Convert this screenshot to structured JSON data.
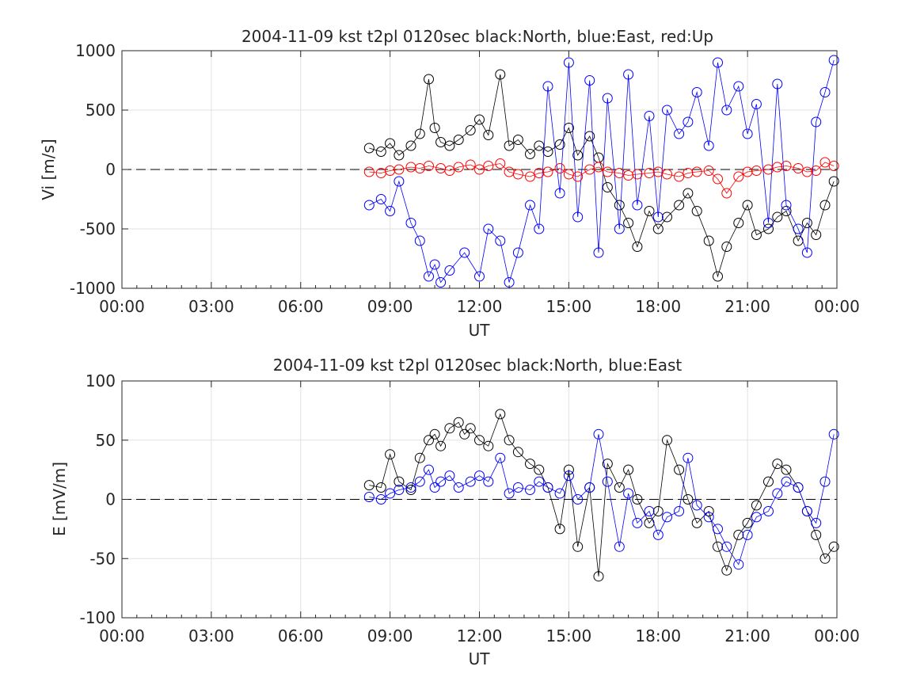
{
  "chart_data": [
    {
      "type": "scatter",
      "title": "2004-11-09 kst t2pl 0120sec black:North, blue:East, red:Up",
      "xlabel": "UT",
      "ylabel": "Vi [m/s]",
      "xlim": [
        0,
        24
      ],
      "ylim": [
        -1000,
        1000
      ],
      "x_ticks": [
        "00:00",
        "03:00",
        "06:00",
        "09:00",
        "12:00",
        "15:00",
        "18:00",
        "21:00",
        "00:00"
      ],
      "y_ticks": [
        "1000",
        "500",
        "0",
        "-500",
        "-1000"
      ],
      "y_tick_values": [
        1000,
        500,
        0,
        -500,
        -1000
      ],
      "grid": true,
      "zero_line": true,
      "series": [
        {
          "color": "#000000",
          "x": [
            8.3,
            8.7,
            9.0,
            9.3,
            9.7,
            10.0,
            10.3,
            10.5,
            10.7,
            11.0,
            11.3,
            11.7,
            12.0,
            12.3,
            12.7,
            13.0,
            13.3,
            13.7,
            14.0,
            14.3,
            14.7,
            15.0,
            15.3,
            15.7,
            16.0,
            16.3,
            16.7,
            17.0,
            17.3,
            17.7,
            18.0,
            18.3,
            18.7,
            19.0,
            19.3,
            19.7,
            20.0,
            20.3,
            20.7,
            21.0,
            21.3,
            21.7,
            22.0,
            22.3,
            22.7,
            23.0,
            23.3,
            23.6,
            23.9
          ],
          "y": [
            180,
            150,
            220,
            120,
            200,
            300,
            760,
            350,
            230,
            200,
            250,
            330,
            420,
            290,
            800,
            200,
            250,
            130,
            200,
            150,
            210,
            350,
            120,
            280,
            100,
            -150,
            -300,
            -450,
            -650,
            -350,
            -500,
            -400,
            -300,
            -200,
            -350,
            -600,
            -900,
            -650,
            -450,
            -300,
            -550,
            -500,
            -400,
            -350,
            -600,
            -450,
            -550,
            -300,
            -100
          ]
        },
        {
          "color": "#0000ff",
          "x": [
            8.3,
            8.7,
            9.0,
            9.3,
            9.7,
            10.0,
            10.3,
            10.5,
            10.7,
            11.0,
            11.5,
            12.0,
            12.3,
            12.7,
            13.0,
            13.3,
            13.7,
            14.0,
            14.3,
            14.7,
            15.0,
            15.3,
            15.7,
            16.0,
            16.3,
            16.7,
            17.0,
            17.3,
            17.7,
            18.0,
            18.3,
            18.7,
            19.0,
            19.3,
            19.7,
            20.0,
            20.3,
            20.7,
            21.0,
            21.3,
            21.7,
            22.0,
            22.3,
            22.7,
            23.0,
            23.3,
            23.6,
            23.9
          ],
          "y": [
            -300,
            -250,
            -350,
            -100,
            -450,
            -600,
            -900,
            -800,
            -950,
            -850,
            -700,
            -900,
            -500,
            -600,
            -950,
            -700,
            -300,
            -500,
            700,
            -200,
            900,
            -400,
            750,
            -700,
            600,
            -500,
            800,
            -300,
            450,
            -400,
            500,
            300,
            400,
            650,
            200,
            900,
            500,
            700,
            300,
            550,
            -450,
            720,
            -300,
            -500,
            -700,
            400,
            650,
            920
          ]
        },
        {
          "color": "#ff0000",
          "x": [
            8.3,
            8.7,
            9.0,
            9.3,
            9.7,
            10.0,
            10.3,
            10.7,
            11.0,
            11.3,
            11.7,
            12.0,
            12.3,
            12.7,
            13.0,
            13.3,
            13.7,
            14.0,
            14.3,
            14.7,
            15.0,
            15.3,
            15.7,
            16.0,
            16.3,
            16.7,
            17.0,
            17.3,
            17.7,
            18.0,
            18.3,
            18.7,
            19.0,
            19.3,
            19.7,
            20.0,
            20.3,
            20.7,
            21.0,
            21.3,
            21.7,
            22.0,
            22.3,
            22.7,
            23.0,
            23.3,
            23.6,
            23.9
          ],
          "y": [
            -20,
            -30,
            -10,
            0,
            20,
            10,
            30,
            10,
            -10,
            20,
            40,
            0,
            30,
            50,
            -20,
            -40,
            -60,
            -30,
            -20,
            10,
            -40,
            -60,
            0,
            20,
            -20,
            -30,
            -50,
            -40,
            -30,
            -20,
            -40,
            -60,
            -30,
            -20,
            -10,
            -80,
            -200,
            -60,
            -20,
            -10,
            0,
            20,
            30,
            10,
            -20,
            -10,
            60,
            30
          ]
        }
      ]
    },
    {
      "type": "scatter",
      "title": "2004-11-09 kst t2pl 0120sec black:North, blue:East",
      "xlabel": "UT",
      "ylabel": "E [mV/m]",
      "xlim": [
        0,
        24
      ],
      "ylim": [
        -100,
        100
      ],
      "x_ticks": [
        "00:00",
        "03:00",
        "06:00",
        "09:00",
        "12:00",
        "15:00",
        "18:00",
        "21:00",
        "00:00"
      ],
      "y_ticks": [
        "100",
        "50",
        "0",
        "-50",
        "-100"
      ],
      "y_tick_values": [
        100,
        50,
        0,
        -50,
        -100
      ],
      "grid": true,
      "zero_line": true,
      "series": [
        {
          "color": "#000000",
          "x": [
            8.3,
            8.7,
            9.0,
            9.3,
            9.7,
            10.0,
            10.3,
            10.5,
            10.7,
            11.0,
            11.3,
            11.5,
            11.7,
            12.0,
            12.3,
            12.7,
            13.0,
            13.3,
            13.7,
            14.0,
            14.3,
            14.7,
            15.0,
            15.3,
            15.7,
            16.0,
            16.3,
            16.7,
            17.0,
            17.3,
            17.7,
            18.0,
            18.3,
            18.7,
            19.0,
            19.3,
            19.7,
            20.0,
            20.3,
            20.7,
            21.0,
            21.3,
            21.7,
            22.0,
            22.3,
            22.7,
            23.0,
            23.3,
            23.6,
            23.9
          ],
          "y": [
            12,
            10,
            38,
            15,
            8,
            35,
            50,
            55,
            45,
            60,
            65,
            55,
            60,
            50,
            45,
            72,
            50,
            40,
            30,
            25,
            10,
            -25,
            25,
            -40,
            10,
            -65,
            30,
            10,
            25,
            0,
            -20,
            -10,
            50,
            25,
            0,
            -20,
            -10,
            -40,
            -60,
            -30,
            -20,
            -5,
            15,
            30,
            25,
            10,
            -10,
            -30,
            -50,
            -40
          ]
        },
        {
          "color": "#0000ff",
          "x": [
            8.3,
            8.7,
            9.0,
            9.3,
            9.7,
            10.0,
            10.3,
            10.5,
            10.7,
            11.0,
            11.3,
            11.7,
            12.0,
            12.3,
            12.7,
            13.0,
            13.3,
            13.7,
            14.0,
            14.3,
            14.7,
            15.0,
            15.3,
            15.7,
            16.0,
            16.3,
            16.7,
            17.0,
            17.3,
            17.7,
            18.0,
            18.3,
            18.7,
            19.0,
            19.3,
            19.7,
            20.0,
            20.3,
            20.7,
            21.0,
            21.3,
            21.7,
            22.0,
            22.3,
            22.7,
            23.0,
            23.3,
            23.6,
            23.9
          ],
          "y": [
            2,
            0,
            5,
            8,
            10,
            15,
            25,
            10,
            15,
            20,
            10,
            15,
            20,
            15,
            35,
            5,
            10,
            8,
            15,
            10,
            5,
            20,
            0,
            10,
            55,
            15,
            -40,
            5,
            -20,
            -10,
            -30,
            -15,
            -10,
            35,
            -5,
            -15,
            -25,
            -40,
            -55,
            -30,
            -15,
            -10,
            5,
            15,
            10,
            -10,
            -20,
            15,
            55
          ]
        }
      ]
    }
  ]
}
